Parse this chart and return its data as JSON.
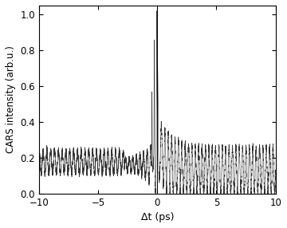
{
  "xlim": [
    -10,
    10
  ],
  "ylim": [
    0,
    1.05
  ],
  "yticks": [
    0,
    0.2,
    0.4,
    0.6,
    0.8,
    1
  ],
  "xticks": [
    -10,
    -5,
    0,
    5,
    10
  ],
  "xlabel": "Δt (ps)",
  "ylabel": "CARS intensity (arb.u.)",
  "vline_x": 0,
  "line_color": "#333333",
  "background_color": "#ffffff",
  "figsize": [
    3.6,
    2.86
  ],
  "dpi": 100
}
